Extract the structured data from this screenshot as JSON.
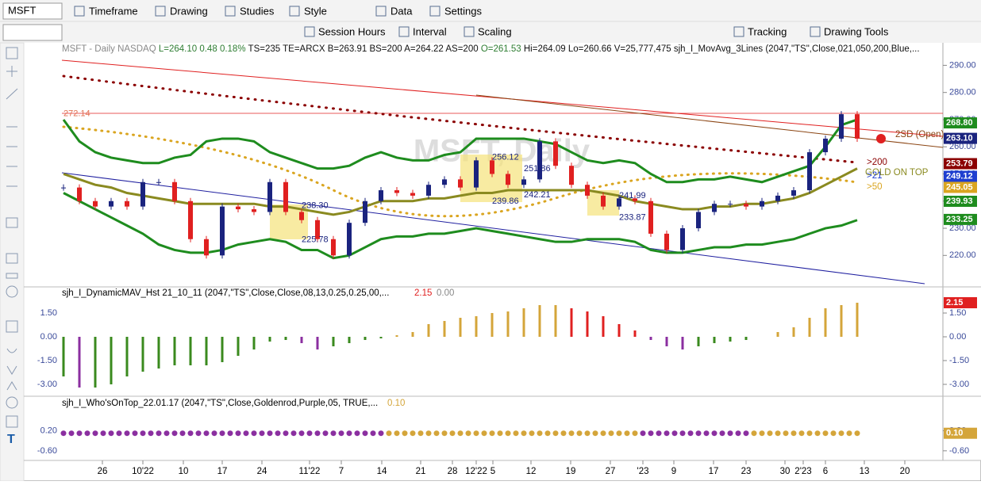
{
  "toolbar": {
    "symbol": "MSFT",
    "row1": [
      "Timeframe",
      "Drawing",
      "Studies",
      "Style",
      "Data",
      "Settings"
    ],
    "row2": [
      "Session Hours",
      "Interval",
      "Scaling",
      "Tracking",
      "Drawing Tools"
    ]
  },
  "header": [
    {
      "text": "MSFT - Daily  NASDAQ",
      "color": "#888888"
    },
    {
      "text": "L=264.10",
      "color": "#2e7d32"
    },
    {
      "text": "0.48",
      "color": "#2e7d32"
    },
    {
      "text": "0.18%",
      "color": "#2e7d32"
    },
    {
      "text": "TS=235 TE=ARCX B=263.91 BS=200 A=264.22 AS=200",
      "color": "#111111"
    },
    {
      "text": "O=261.53",
      "color": "#2e7d32"
    },
    {
      "text": "Hi=264.09 Lo=260.66 V=25,777,475",
      "color": "#111111"
    },
    {
      "text": "sjh_I_MovAvg_3Lines (2047,\"TS\",Close,021,050,200,Blue,...",
      "color": "#111111"
    }
  ],
  "watermark": "MSFT, Daily",
  "price_pane": {
    "ylim": [
      209,
      298
    ],
    "yticks": [
      {
        "value": 290,
        "label": "290.00"
      },
      {
        "value": 280,
        "label": "280.00"
      },
      {
        "value": 270,
        "label": "270.00"
      },
      {
        "value": 260,
        "label": "260.00"
      },
      {
        "value": 250,
        "label": "250.00"
      },
      {
        "value": 240,
        "label": "240.00"
      },
      {
        "value": 230,
        "label": "230.00"
      },
      {
        "value": 220,
        "label": "220.00"
      }
    ],
    "closes": [
      245,
      240,
      238,
      240,
      238,
      247,
      247,
      240,
      226,
      220,
      238,
      237,
      236,
      247,
      236,
      233,
      226,
      220,
      232,
      240,
      244,
      243,
      242,
      246,
      248,
      245,
      255,
      250,
      246,
      248,
      262,
      253,
      246,
      242,
      238,
      241,
      240,
      228,
      222,
      230,
      236,
      239,
      239,
      238,
      240,
      242,
      244,
      258,
      263,
      272,
      263
    ],
    "upper_band": [
      270,
      262,
      258,
      256,
      255,
      254,
      254,
      256,
      257,
      262,
      263,
      263,
      262,
      258,
      256,
      254,
      252,
      252,
      253,
      256,
      258,
      256,
      255,
      255,
      257,
      258,
      263,
      263,
      263,
      263,
      262,
      261,
      258,
      255,
      254,
      255,
      254,
      250,
      247,
      247,
      248,
      248,
      249,
      248,
      247,
      249,
      251,
      253,
      260,
      268,
      270
    ],
    "lower_band": [
      243,
      240,
      237,
      234,
      231,
      228,
      224,
      222,
      221,
      221,
      222,
      224,
      225,
      226,
      225,
      222,
      222,
      219,
      220,
      223,
      226,
      227,
      227,
      228,
      228,
      229,
      230,
      229,
      228,
      227,
      226,
      225,
      225,
      226,
      226,
      226,
      225,
      222,
      221,
      221,
      222,
      223,
      223,
      224,
      224,
      225,
      226,
      228,
      230,
      231,
      233
    ],
    "average": [
      250,
      248,
      246,
      245,
      243,
      242,
      241,
      240,
      239,
      239,
      239,
      239,
      239,
      238,
      238,
      237,
      236,
      235,
      236,
      238,
      240,
      240,
      240,
      241,
      241,
      242,
      243,
      243,
      244,
      244,
      244,
      244,
      244,
      244,
      243,
      242,
      240,
      239,
      238,
      237,
      237,
      238,
      238,
      239,
      239,
      240,
      241,
      243,
      246,
      249,
      252
    ],
    "up_color": "#1a237e",
    "down_color": "#e02020",
    "band_color": "#1e8c1e",
    "average_color": "#8a8a20",
    "price_labels": [
      {
        "value": 272.14,
        "label": "272.14"
      },
      {
        "value": 256.12,
        "label": "256.12"
      },
      {
        "value": 251.86,
        "label": "251.86"
      },
      {
        "value": 238.3,
        "label": "238.30"
      },
      {
        "value": 225.78,
        "label": "225.78"
      },
      {
        "value": 239.86,
        "label": "239.86"
      },
      {
        "value": 242.21,
        "label": "242.21"
      },
      {
        "value": 241.99,
        "label": "241.99"
      },
      {
        "value": 233.87,
        "label": "233.87"
      }
    ],
    "line_labels": [
      "2SD (Open)",
      ">200",
      "GOLD ON TOP",
      ">21",
      ">50"
    ],
    "value_boxes": [
      {
        "value": 268.8,
        "label": "268.80",
        "color": "#1e8c1e"
      },
      {
        "value": 263.1,
        "label": "263.10",
        "color": "#1a237e"
      },
      {
        "value": 253.79,
        "label": "253.79",
        "color": "#8b0000"
      },
      {
        "value": 249.12,
        "label": "249.12",
        "color": "#1f3fd0"
      },
      {
        "value": 245.05,
        "label": "245.05",
        "color": "#daa520"
      },
      {
        "value": 239.93,
        "label": "239.93",
        "color": "#1e8c1e"
      },
      {
        "value": 233.25,
        "label": "233.25",
        "color": "#1e8c1e"
      }
    ]
  },
  "histogram_pane": {
    "title": "sjh_I_DynamicMAV_Hst 21_10_11 (2047,\"TS\",Close,Close,08,13,0.25,0.25,00,...",
    "last": "2.15",
    "zero": "0.00",
    "ylim": [
      -3.75,
      3.15
    ],
    "yticks": [
      {
        "value": 1.5,
        "label": "1.50"
      },
      {
        "value": 0,
        "label": "0.00"
      },
      {
        "value": -1.5,
        "label": "-1.50"
      },
      {
        "value": -3,
        "label": "-3.00"
      }
    ],
    "values": [
      -2.5,
      -3.2,
      -3.2,
      -3,
      -2.5,
      -2.2,
      -2,
      -1.8,
      -1.8,
      -1.8,
      -1.6,
      -1.2,
      -0.8,
      -0.3,
      -0.2,
      -0.4,
      -0.8,
      -0.6,
      -0.4,
      -0.2,
      -0.1,
      0.1,
      0.3,
      0.8,
      1,
      1.2,
      1.3,
      1.5,
      1.6,
      1.8,
      2,
      2,
      1.8,
      1.6,
      1.3,
      0.8,
      0.4,
      -0.2,
      -0.6,
      -0.8,
      -0.6,
      -0.4,
      -0.3,
      -0.2,
      0,
      0.3,
      0.6,
      1.2,
      1.8,
      2,
      2.15
    ],
    "colors": {
      "falling_negative": "#8b2fa0",
      "rising_negative": "#3a8a1e",
      "rising_positive": "#d4a53a",
      "falling_positive": "#e02020"
    },
    "box": {
      "value": 2.15,
      "label": "2.15",
      "color": "#e02020"
    }
  },
  "dots_pane": {
    "title": "sjh_I_Who'sOnTop_22.01.17 (2047,\"TS\",Close,Goldenrod,Purple,05, TRUE,...",
    "last": "0.10",
    "ylim": [
      -0.984,
      1.576
    ],
    "yticks": [
      {
        "value": 0.2,
        "label": "0.20"
      },
      {
        "value": -0.6,
        "label": "-0.60"
      }
    ],
    "value": 0.1,
    "colors": [
      "#8b2fa0",
      "#d4a53a"
    ],
    "box": {
      "value": 0.1,
      "label": "0.10",
      "color": "#d4a53a"
    }
  },
  "x_labels": [
    "26",
    "10'22",
    "10",
    "17",
    "24",
    "11'22",
    "7",
    "14",
    "21",
    "28",
    "12'22",
    "5",
    "12",
    "19",
    "27",
    "'23",
    "9",
    "17",
    "23",
    "30",
    "2'23",
    "6",
    "13",
    "20"
  ]
}
